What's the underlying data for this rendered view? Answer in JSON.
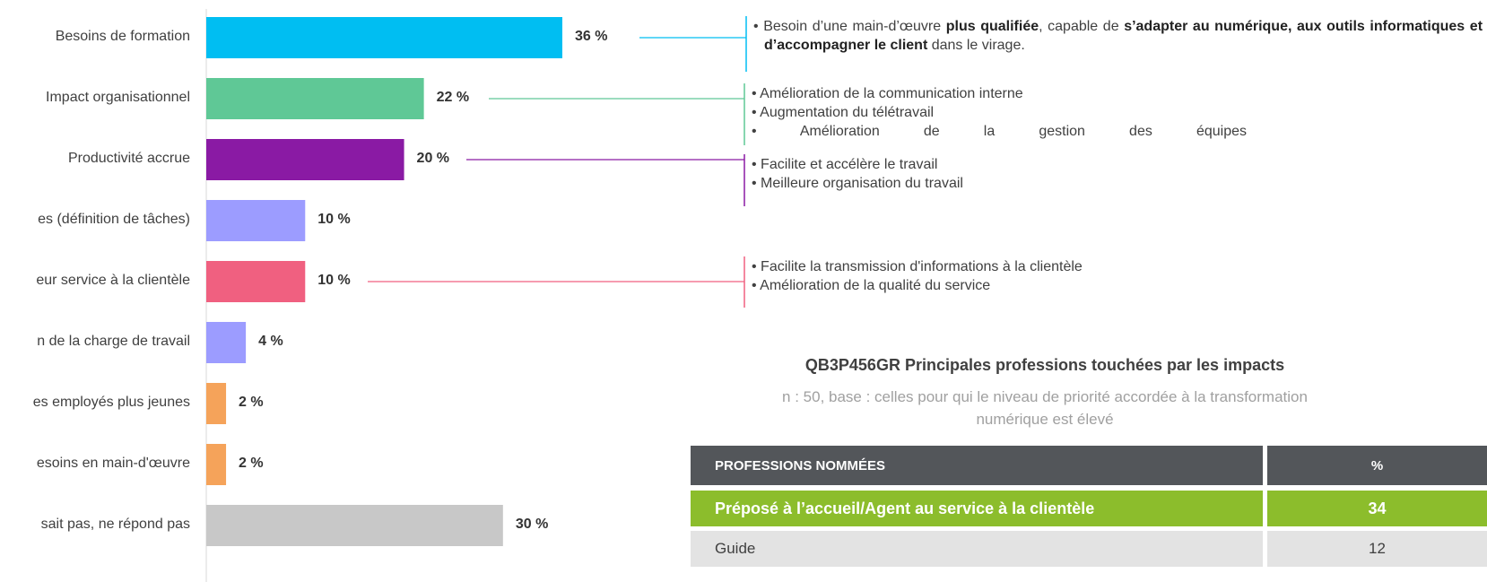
{
  "chart_data": {
    "type": "bar",
    "orientation": "horizontal",
    "categories": [
      "Besoins de formation",
      "Impact organisationnel",
      "Productivité accrue",
      "es (définition de tâches)",
      "eur service à la clientèle",
      "n de la charge de travail",
      "es employés plus jeunes",
      "esoins en main-d'œuvre",
      "sait pas, ne répond pas"
    ],
    "values": [
      36,
      22,
      20,
      10,
      10,
      4,
      2,
      2,
      30
    ],
    "value_labels": [
      "36 %",
      "22 %",
      "20 %",
      "10 %",
      "10 %",
      "4 %",
      "2 %",
      "2 %",
      "30 %"
    ],
    "colors": [
      "#00bef2",
      "#5fc896",
      "#8a1aa4",
      "#9c9cff",
      "#f06080",
      "#9c9cff",
      "#f5a35a",
      "#f5a35a",
      "#c8c8c8"
    ],
    "xlim": [
      0,
      36
    ]
  },
  "annotations": [
    [
      [
        {
          "text": "Besoin d’une main-d’œuvre ",
          "bold": false
        },
        {
          "text": "plus qualifiée",
          "bold": true
        },
        {
          "text": ", capable de ",
          "bold": false
        },
        {
          "text": "s’adapter au numérique, aux outils informatiques et d’accompagner le client",
          "bold": true
        },
        {
          "text": " dans le virage.",
          "bold": false
        }
      ]
    ],
    [
      [
        {
          "text": "Amélioration de la communication interne",
          "bold": false
        }
      ],
      [
        {
          "text": "Augmentation du télétravail",
          "bold": false
        }
      ],
      [
        {
          "text": "Amélioration de la gestion des équipes",
          "bold": false
        }
      ]
    ],
    [
      [
        {
          "text": "Facilite et accélère le travail",
          "bold": false
        }
      ],
      [
        {
          "text": "Meilleure organisation du travail",
          "bold": false
        }
      ]
    ],
    [
      [
        {
          "text": "Facilite la transmission d'informations à la clientèle",
          "bold": false
        }
      ],
      [
        {
          "text": "Amélioration de la qualité du service",
          "bold": false
        }
      ]
    ]
  ],
  "table": {
    "title": "QB3P456GR Principales professions touchées par les impacts",
    "subtitle": "n : 50, base : celles pour qui le niveau de priorité accordée à la transformation numérique est élevé",
    "header": [
      "PROFESSIONS NOMMÉES",
      "%"
    ],
    "rows": [
      [
        "Préposé à l’accueil/Agent au service à la clientèle",
        34
      ],
      [
        "Guide",
        12
      ]
    ]
  }
}
